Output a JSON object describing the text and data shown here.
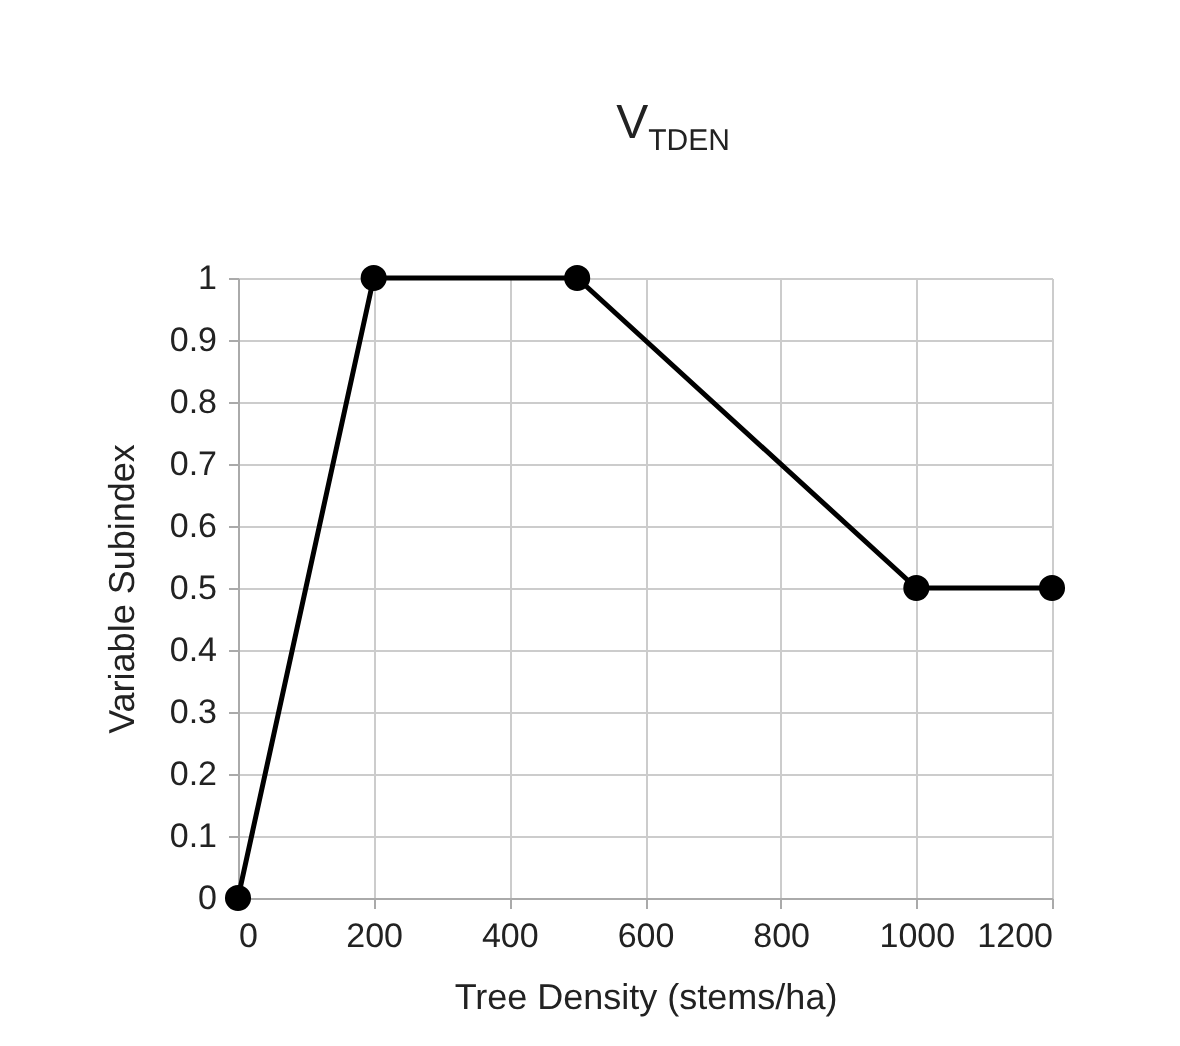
{
  "chart_data": {
    "type": "line",
    "title": "V$_{TDEN}$",
    "xlabel": "Tree Density (stems/ha)",
    "ylabel": "Variable Subindex",
    "x": [
      0,
      200,
      500,
      1000,
      1200
    ],
    "series": [
      {
        "color": "#000000",
        "values": [
          0,
          1,
          1,
          0.5,
          0.5
        ]
      }
    ],
    "xlim": [
      0,
      1200
    ],
    "xticks": [
      0,
      200,
      400,
      600,
      800,
      1000,
      1200
    ],
    "ylim": [
      0,
      1
    ],
    "yticks": [
      0,
      0.1,
      0.2,
      0.3,
      0.4,
      0.5,
      0.6,
      0.7,
      0.8,
      0.9,
      1
    ],
    "grid": true,
    "marker": "circle",
    "line_style": "solid"
  }
}
